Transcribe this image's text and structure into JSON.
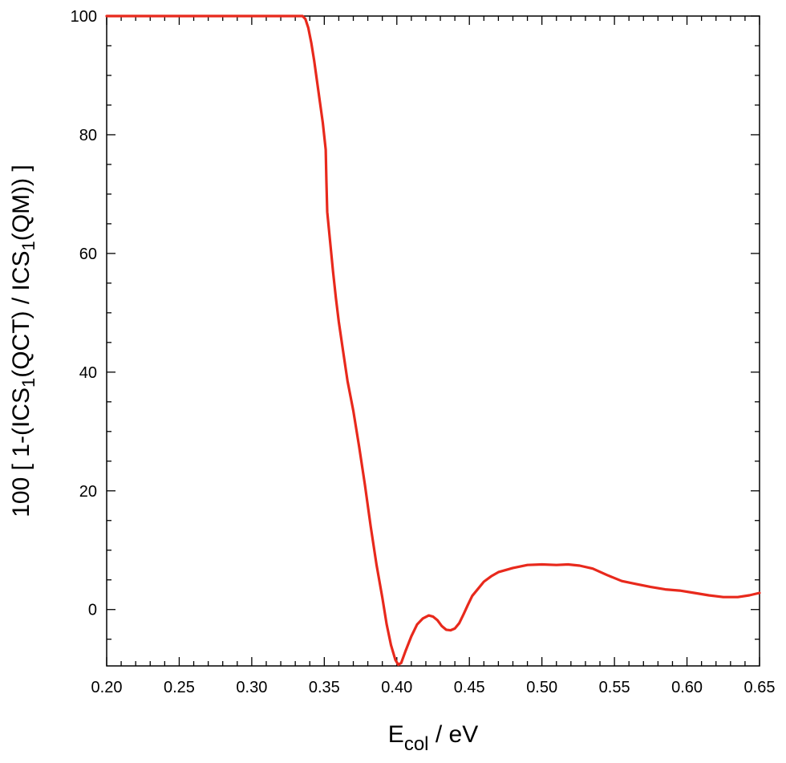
{
  "chart_data": {
    "type": "line",
    "xlabel": "E",
    "xlabel_sub": "col",
    "xlabel_unit": " / eV",
    "ylabel_parts": [
      {
        "t": "100 [ 1-(ICS",
        "sub": false
      },
      {
        "t": "1",
        "sub": true
      },
      {
        "t": "(QCT) / ICS",
        "sub": false
      },
      {
        "t": "1",
        "sub": true
      },
      {
        "t": "(QM)) ]",
        "sub": false
      }
    ],
    "xlim": [
      0.2,
      0.65
    ],
    "ylim": [
      -9.5,
      100
    ],
    "x_ticks": [
      0.2,
      0.25,
      0.3,
      0.35,
      0.4,
      0.45,
      0.5,
      0.55,
      0.6,
      0.65
    ],
    "x_tick_labels": [
      "0.20",
      "0.25",
      "0.30",
      "0.35",
      "0.40",
      "0.45",
      "0.50",
      "0.55",
      "0.60",
      "0.65"
    ],
    "y_ticks": [
      0,
      20,
      40,
      60,
      80,
      100
    ],
    "y_tick_labels": [
      "0",
      "20",
      "40",
      "60",
      "80",
      "100"
    ],
    "x_minor_step": 0.01,
    "y_minor_step": 5,
    "grid": false,
    "series": [
      {
        "color": "#e8291c",
        "points": [
          [
            0.2,
            100
          ],
          [
            0.335,
            100
          ],
          [
            0.337,
            99.5
          ],
          [
            0.339,
            98
          ],
          [
            0.341,
            95.5
          ],
          [
            0.343,
            92.5
          ],
          [
            0.345,
            89
          ],
          [
            0.347,
            85.5
          ],
          [
            0.349,
            82
          ],
          [
            0.351,
            77.5
          ],
          [
            0.3515,
            72
          ],
          [
            0.352,
            67
          ],
          [
            0.354,
            62
          ],
          [
            0.356,
            57
          ],
          [
            0.358,
            52.5
          ],
          [
            0.36,
            48.5
          ],
          [
            0.363,
            43.5
          ],
          [
            0.366,
            38.5
          ],
          [
            0.37,
            33.5
          ],
          [
            0.374,
            27.5
          ],
          [
            0.378,
            21
          ],
          [
            0.382,
            14
          ],
          [
            0.386,
            7.5
          ],
          [
            0.39,
            2
          ],
          [
            0.393,
            -2.5
          ],
          [
            0.396,
            -6
          ],
          [
            0.399,
            -8.5
          ],
          [
            0.401,
            -9.3
          ],
          [
            0.403,
            -9
          ],
          [
            0.406,
            -7
          ],
          [
            0.41,
            -4.5
          ],
          [
            0.414,
            -2.5
          ],
          [
            0.418,
            -1.5
          ],
          [
            0.422,
            -1
          ],
          [
            0.425,
            -1.2
          ],
          [
            0.428,
            -1.8
          ],
          [
            0.431,
            -2.8
          ],
          [
            0.434,
            -3.4
          ],
          [
            0.437,
            -3.5
          ],
          [
            0.44,
            -3.2
          ],
          [
            0.443,
            -2.3
          ],
          [
            0.446,
            -0.8
          ],
          [
            0.449,
            0.8
          ],
          [
            0.452,
            2.3
          ],
          [
            0.456,
            3.5
          ],
          [
            0.46,
            4.7
          ],
          [
            0.465,
            5.6
          ],
          [
            0.47,
            6.3
          ],
          [
            0.48,
            7.0
          ],
          [
            0.49,
            7.5
          ],
          [
            0.5,
            7.6
          ],
          [
            0.51,
            7.5
          ],
          [
            0.518,
            7.6
          ],
          [
            0.526,
            7.4
          ],
          [
            0.535,
            6.9
          ],
          [
            0.545,
            5.8
          ],
          [
            0.555,
            4.8
          ],
          [
            0.565,
            4.3
          ],
          [
            0.575,
            3.8
          ],
          [
            0.585,
            3.4
          ],
          [
            0.595,
            3.2
          ],
          [
            0.605,
            2.8
          ],
          [
            0.615,
            2.4
          ],
          [
            0.625,
            2.1
          ],
          [
            0.635,
            2.1
          ],
          [
            0.643,
            2.4
          ],
          [
            0.65,
            2.8
          ]
        ]
      }
    ]
  }
}
